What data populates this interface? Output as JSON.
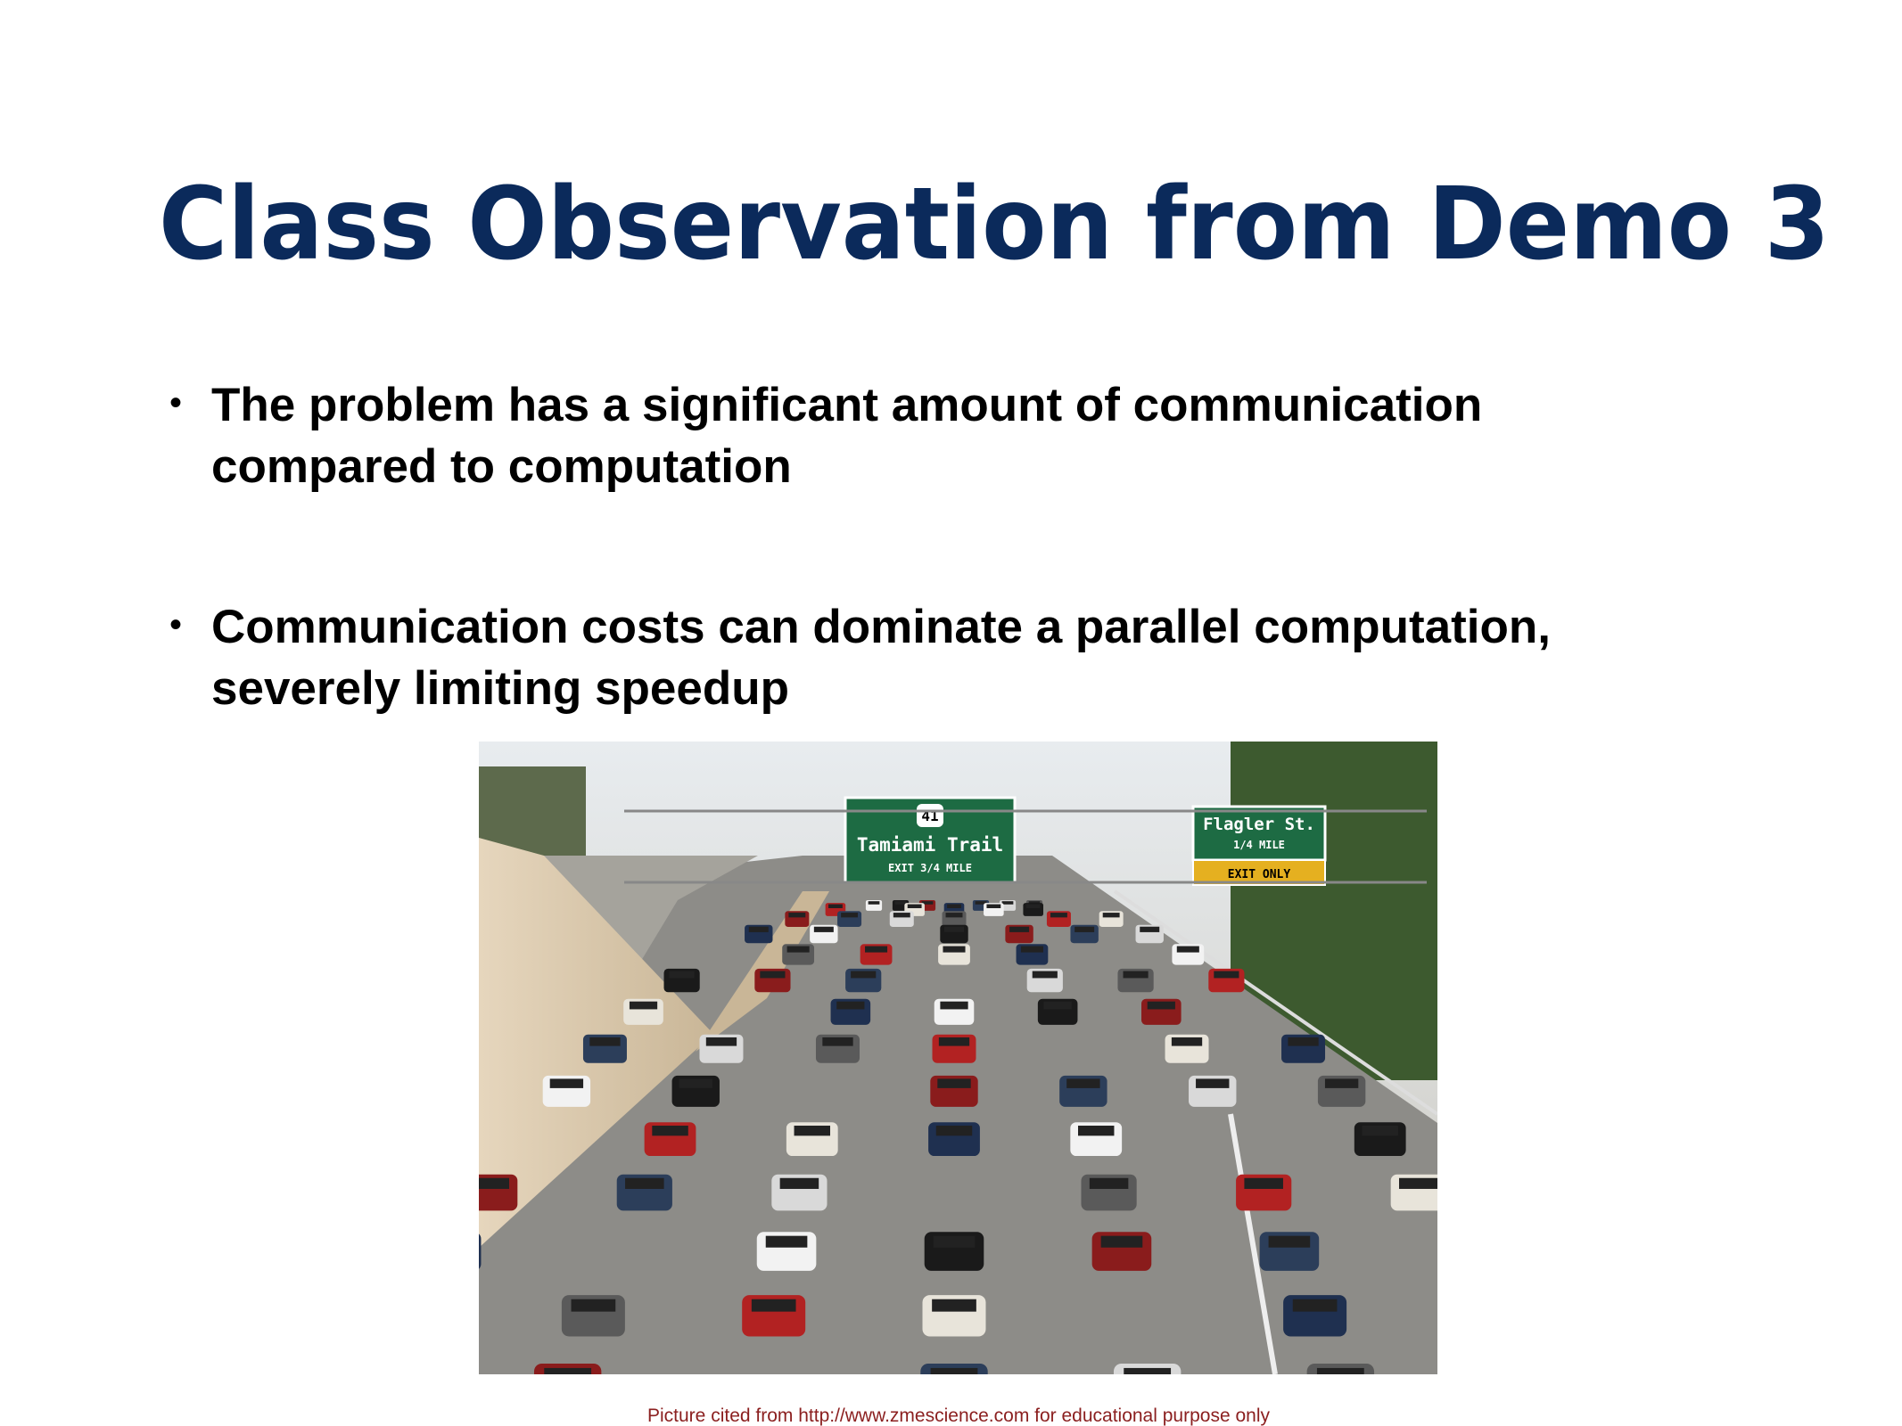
{
  "slide": {
    "title": "Class Observation from Demo 3",
    "bullets": [
      [
        "The problem has a significant amount of communication",
        "compared to computation"
      ],
      [
        "Communication costs can dominate a parallel computation,",
        "severely limiting speedup"
      ]
    ],
    "image": {
      "signs": {
        "route": "41",
        "left_name": "Tamiami Trail",
        "left_exit": "EXIT 3/4 MILE",
        "right_name": "Flagler St.",
        "right_distance": "1/4 MILE",
        "right_exit": "EXIT ONLY"
      }
    },
    "caption": "Picture cited from http://www.zmescience.com for educational purpose only"
  }
}
